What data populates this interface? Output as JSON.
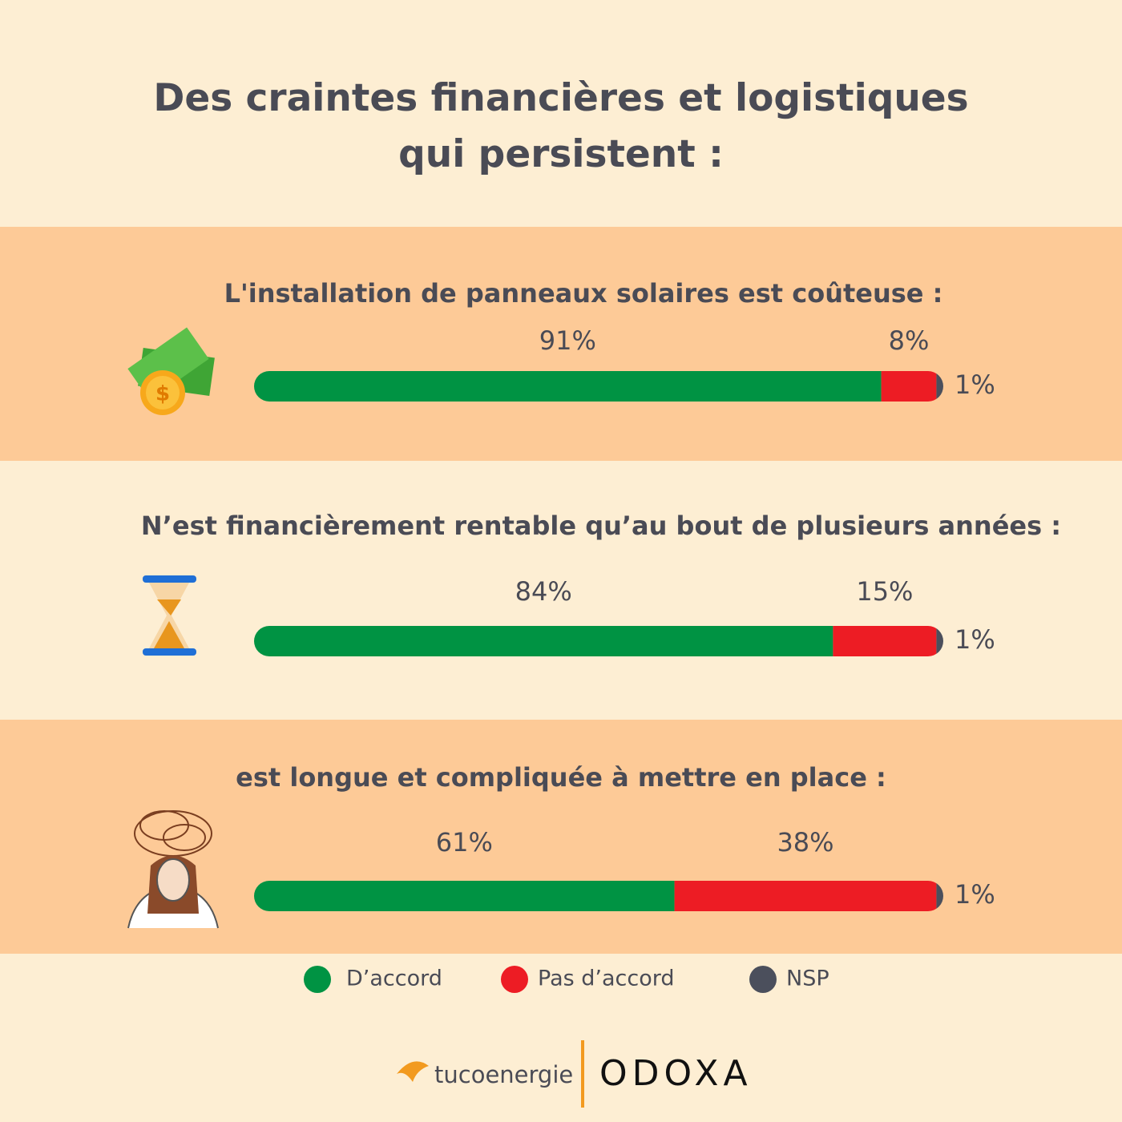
{
  "chart_data": {
    "type": "stacked-bar",
    "title": "Des craintes financières et logistiques qui persistent :",
    "categories": [
      "L'installation de panneaux solaires est coûteuse :",
      "N’est financièrement rentable qu’au bout de plusieurs années :",
      "est longue et compliquée à mettre en place :"
    ],
    "series": [
      {
        "name": "D’accord",
        "color": "#009343",
        "values": [
          91,
          84,
          61
        ],
        "value_labels": [
          "91%",
          "84%",
          "61%"
        ]
      },
      {
        "name": "Pas d’accord",
        "color": "#ed1c24",
        "values": [
          8,
          15,
          38
        ],
        "value_labels": [
          "8%",
          "15%",
          "38%"
        ]
      },
      {
        "name": "NSP",
        "color": "#4b4f5c",
        "values": [
          1,
          1,
          1
        ],
        "value_labels": [
          "1%",
          "1%",
          "1%"
        ]
      }
    ]
  },
  "footer": {
    "brand": "tucoenergie",
    "partner": "ODOXA"
  }
}
